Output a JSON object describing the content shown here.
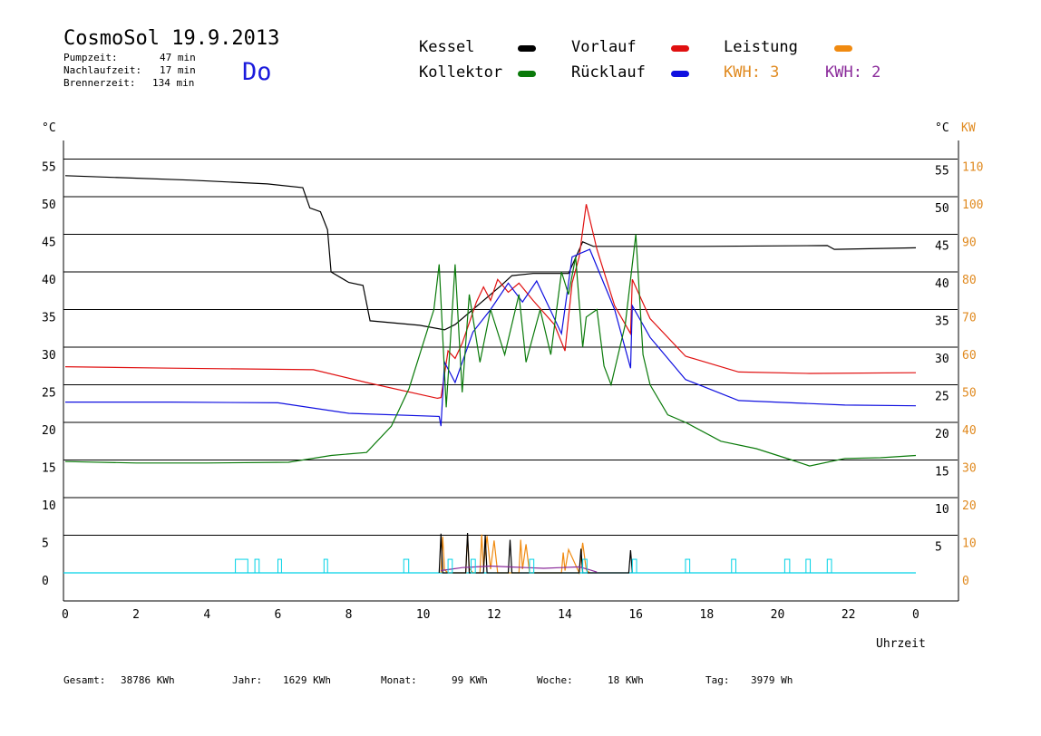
{
  "header": {
    "title": "CosmoSol 19.9.2013",
    "weekday": "Do",
    "stats": [
      {
        "label": "Pumpzeit:",
        "value": "47 min"
      },
      {
        "label": "Nachlaufzeit:",
        "value": "17 min"
      },
      {
        "label": "Brennerzeit:",
        "value": "134 min"
      }
    ]
  },
  "legend": {
    "kessel": {
      "label": "Kessel",
      "color": "#000000"
    },
    "kollektor": {
      "label": "Kollektor",
      "color": "#0a7a0a"
    },
    "vorlauf": {
      "label": "Vorlauf",
      "color": "#e01010"
    },
    "ruecklauf": {
      "label": "Rücklauf",
      "color": "#1010e0"
    },
    "leistung": {
      "label": "Leistung",
      "color": "#f08a10"
    },
    "kwh3": {
      "label": "KWH: 3",
      "color": "#e08a20"
    },
    "kwh2": {
      "label": "KWH: 2",
      "color": "#8a2a9a"
    }
  },
  "footer": [
    {
      "label": "Gesamt:",
      "value": "38786 KWh"
    },
    {
      "label": "Jahr:",
      "value": "1629 KWh"
    },
    {
      "label": "Monat:",
      "value": "99 KWh"
    },
    {
      "label": "Woche:",
      "value": "18 KWh"
    },
    {
      "label": "Tag:",
      "value": "3979 Wh"
    }
  ],
  "chart_data": {
    "type": "line",
    "xlabel": "Uhrzeit",
    "ylabel_left": "°C",
    "ylabel_right": "°C",
    "ylabel_right2": "KW",
    "xlim": [
      0,
      24
    ],
    "ylim": [
      -2,
      57
    ],
    "x_ticks": [
      "0",
      "2",
      "4",
      "6",
      "8",
      "10",
      "12",
      "14",
      "16",
      "18",
      "20",
      "22",
      "0"
    ],
    "y_ticks_left": [
      "0",
      "5",
      "10",
      "15",
      "20",
      "25",
      "30",
      "35",
      "40",
      "45",
      "50",
      "55"
    ],
    "y_ticks_right": [
      "5",
      "10",
      "15",
      "20",
      "25",
      "30",
      "35",
      "40",
      "45",
      "50",
      "55"
    ],
    "y_ticks_kw": [
      "0",
      "10",
      "20",
      "30",
      "40",
      "50",
      "60",
      "70",
      "80",
      "90",
      "100",
      "110"
    ],
    "grid": "horizontal",
    "series": [
      {
        "name": "Kessel",
        "color": "#000000",
        "x": [
          0,
          3.5,
          5.7,
          6.7,
          6.9,
          7.2,
          7.4,
          7.5,
          8.0,
          8.4,
          8.6,
          10.0,
          10.7,
          11.0,
          12.3,
          12.6,
          13.2,
          14.2,
          14.6,
          14.9,
          18,
          21.5,
          21.7,
          24
        ],
        "y": [
          52.8,
          52.2,
          51.7,
          51.2,
          48.5,
          48,
          45.6,
          40,
          38.6,
          38.2,
          33.5,
          32.9,
          32.3,
          33,
          38.2,
          39.5,
          39.8,
          39.8,
          44,
          43.4,
          43.4,
          43.5,
          43.0,
          43.2
        ]
      },
      {
        "name": "Vorlauf",
        "color": "#e01010",
        "x": [
          0,
          3,
          7,
          8.5,
          10.5,
          10.6,
          10.8,
          11,
          11.2,
          11.6,
          11.8,
          12.0,
          12.2,
          12.5,
          12.8,
          13.2,
          13.8,
          14.1,
          14.3,
          14.5,
          14.7,
          15,
          15.5,
          15.95,
          16.0,
          16.5,
          17.5,
          19,
          21,
          24
        ],
        "y": [
          27.4,
          27.2,
          27.0,
          25.3,
          23.2,
          23.3,
          29.5,
          28.5,
          30.5,
          36,
          38,
          36.2,
          39,
          37.3,
          38.5,
          36.2,
          33,
          29.5,
          38.5,
          42,
          49,
          43,
          35.5,
          31.8,
          39,
          33.8,
          28.8,
          26.7,
          26.5,
          26.6
        ]
      },
      {
        "name": "Rücklauf",
        "color": "#1010e0",
        "x": [
          0,
          3,
          6,
          8,
          10.55,
          10.6,
          10.7,
          11.0,
          11.5,
          12,
          12.5,
          12.9,
          13.3,
          14.0,
          14.3,
          14.8,
          15.5,
          15.95,
          16.0,
          16.5,
          17.5,
          19,
          22,
          24
        ],
        "y": [
          22.7,
          22.7,
          22.6,
          21.2,
          20.8,
          19.5,
          28,
          25.3,
          32,
          35,
          38.5,
          36,
          38.8,
          31.8,
          42,
          43,
          35,
          27.2,
          35.5,
          31.3,
          25.7,
          22.9,
          22.3,
          22.2
        ]
      },
      {
        "name": "Kollektor",
        "color": "#0a7a0a",
        "x": [
          0,
          2,
          4,
          6.3,
          7.5,
          8.5,
          9.2,
          9.7,
          10.0,
          10.2,
          10.4,
          10.55,
          10.75,
          11.0,
          11.2,
          11.4,
          11.7,
          12.0,
          12.4,
          12.8,
          13.0,
          13.4,
          13.7,
          14.0,
          14.2,
          14.4,
          14.6,
          14.7,
          15.0,
          15.2,
          15.4,
          15.8,
          16.1,
          16.3,
          16.5,
          17.0,
          17.5,
          18.5,
          19.5,
          20.5,
          21.0,
          22.0,
          23.0,
          24.0
        ],
        "y": [
          14.8,
          14.6,
          14.6,
          14.7,
          15.6,
          16.0,
          19.5,
          24.5,
          29,
          32,
          35,
          41,
          22,
          41,
          24,
          37,
          28,
          35,
          29,
          37,
          28,
          35,
          29,
          40,
          37,
          42,
          30,
          34,
          35,
          27.5,
          25,
          33,
          45,
          29,
          25,
          21,
          20,
          17.5,
          16.5,
          15.0,
          14.2,
          15.2,
          15.3,
          15.6
        ]
      },
      {
        "name": "Leistung",
        "color": "#f08a10",
        "x": [
          10.6,
          10.65,
          10.7,
          10.8,
          11.3,
          11.35,
          11.4,
          11.5,
          11.7,
          11.75,
          11.8,
          11.9,
          12.0,
          12.1,
          12.2,
          12.8,
          12.85,
          12.9,
          13.0,
          13.1,
          14.0,
          14.05,
          14.1,
          14.2,
          14.5,
          14.6,
          14.7,
          14.8
        ],
        "y": [
          0,
          4.8,
          0.4,
          0,
          0,
          5.0,
          0.6,
          0,
          0,
          5.1,
          0.7,
          4.9,
          0.5,
          4.3,
          0,
          0,
          4.4,
          0.5,
          3.8,
          0,
          0,
          2.7,
          0.3,
          3.1,
          0,
          4.0,
          0.4,
          0
        ]
      },
      {
        "name": "Kessel_Leistung",
        "color": "#000000",
        "x": [
          10.55,
          10.6,
          10.65,
          10.7,
          11.3,
          11.35,
          11.4,
          11.8,
          11.85,
          11.9,
          12.5,
          12.55,
          12.6,
          14.5,
          14.55,
          14.6,
          15.9,
          15.95,
          16.0
        ],
        "y": [
          0,
          5.2,
          0,
          0,
          0,
          5.3,
          0,
          0,
          5.0,
          0,
          0,
          4.4,
          0,
          0,
          3.2,
          0,
          0,
          3.0,
          0
        ]
      },
      {
        "name": "KWH_baseline",
        "color": "#8a2a9a",
        "x": [
          10.6,
          10.9,
          11.2,
          11.6,
          12.0,
          12.5,
          13.0,
          13.5,
          14.0,
          14.5,
          14.8,
          15.0
        ],
        "y": [
          0.3,
          0.5,
          0.7,
          0.8,
          0.9,
          0.8,
          0.7,
          0.6,
          0.7,
          0.8,
          0.4,
          0.1
        ]
      },
      {
        "name": "Pumpe",
        "color": "#00d2e6",
        "x": [
          4.8,
          5.35,
          6.0,
          7.3,
          9.55,
          10.8,
          11.45,
          13.1,
          14.6,
          16.0,
          17.5,
          18.8,
          20.3,
          20.9,
          21.5
        ],
        "w": [
          0.35,
          0.12,
          0.1,
          0.1,
          0.14,
          0.12,
          0.12,
          0.12,
          0.12,
          0.12,
          0.12,
          0.12,
          0.14,
          0.12,
          0.12
        ],
        "y": [
          1.8,
          1.8,
          1.8,
          1.8,
          1.8,
          1.8,
          1.8,
          1.8,
          1.8,
          1.8,
          1.8,
          1.8,
          1.8,
          1.8,
          1.8
        ]
      }
    ]
  }
}
